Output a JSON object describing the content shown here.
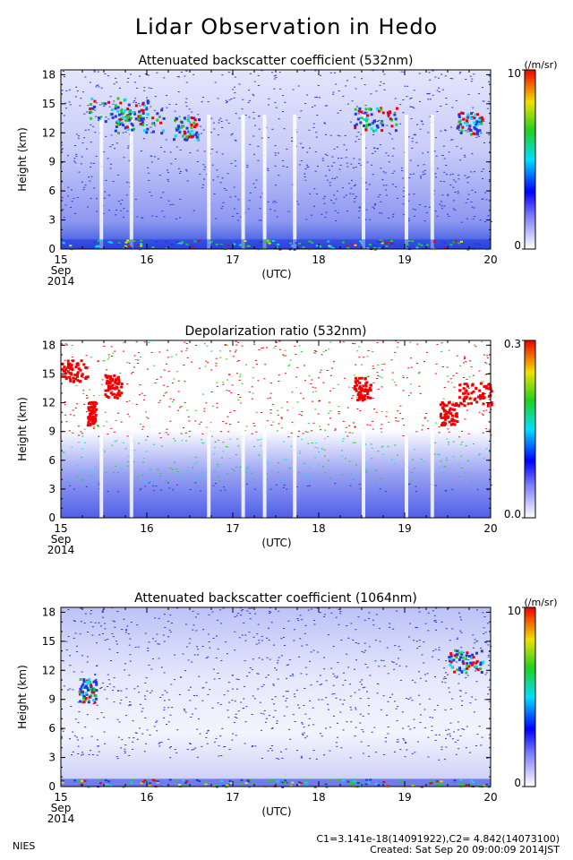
{
  "page_title": "Lidar Observation in Hedo",
  "footer": {
    "org": "NIES",
    "constants": "C1=3.141e-18(14091922),C2= 4.842(14073100)",
    "created": "Created: Sat Sep 20 09:00:09 2014JST"
  },
  "colors": {
    "low": "#ffffff",
    "blue": "#2438e0",
    "cyan": "#00e0ff",
    "green": "#20d020",
    "yellow": "#f0e000",
    "red": "#f00000"
  },
  "chart_data": [
    {
      "type": "heatmap",
      "title": "Attenuated backscatter coefficient (532nm)",
      "ylabel": "Height (km)",
      "xlabel": "(UTC)",
      "x_ticks": [
        "15",
        "16",
        "17",
        "18",
        "19",
        "20"
      ],
      "x_sublabel_1": "Sep",
      "x_sublabel_2": "2014",
      "y_ticks": [
        "0",
        "3",
        "6",
        "9",
        "12",
        "15",
        "18"
      ],
      "xlim": [
        15,
        20
      ],
      "ylim": [
        0,
        18.5
      ],
      "colorbar": {
        "max_label": "10",
        "min_label": "0",
        "unit": "(/m/sr)"
      },
      "features": {
        "cirrus": [
          [
            15.3,
            16.0,
            14.5
          ],
          [
            15.6,
            16.2,
            13.3
          ],
          [
            16.3,
            16.6,
            12.5
          ],
          [
            18.4,
            18.9,
            13.5
          ],
          [
            19.6,
            19.9,
            13.0
          ]
        ],
        "boundary_layer_km": 1.0,
        "gaps": [
          15.45,
          15.8,
          16.7,
          17.1,
          17.35,
          17.7,
          18.5,
          19.0,
          19.3
        ]
      }
    },
    {
      "type": "heatmap",
      "title": "Depolarization ratio (532nm)",
      "ylabel": "Height (km)",
      "xlabel": "(UTC)",
      "x_ticks": [
        "15",
        "16",
        "17",
        "18",
        "19",
        "20"
      ],
      "x_sublabel_1": "Sep",
      "x_sublabel_2": "2014",
      "y_ticks": [
        "0",
        "3",
        "6",
        "9",
        "12",
        "15",
        "18"
      ],
      "xlim": [
        15,
        20
      ],
      "ylim": [
        0,
        18.5
      ],
      "colorbar": {
        "max_label": "0.3",
        "min_label": "0.0"
      },
      "features": {
        "high_depol_layers": [
          [
            15.0,
            15.3,
            15.5
          ],
          [
            15.3,
            15.4,
            11.0
          ],
          [
            15.5,
            15.7,
            13.8
          ],
          [
            18.4,
            18.6,
            13.5
          ],
          [
            19.4,
            19.6,
            11.0
          ],
          [
            19.6,
            20.0,
            13.0
          ]
        ],
        "gaps": [
          15.45,
          15.8,
          16.7,
          17.1,
          17.35,
          17.7,
          18.5,
          19.0,
          19.3
        ]
      }
    },
    {
      "type": "heatmap",
      "title": "Attenuated backscatter coefficient (1064nm)",
      "ylabel": "Height (km)",
      "xlabel": "(UTC)",
      "x_ticks": [
        "15",
        "16",
        "17",
        "18",
        "19",
        "20"
      ],
      "x_sublabel_1": "Sep",
      "x_sublabel_2": "2014",
      "y_ticks": [
        "0",
        "3",
        "6",
        "9",
        "12",
        "15",
        "18"
      ],
      "xlim": [
        15,
        20
      ],
      "ylim": [
        0,
        18.5
      ],
      "colorbar": {
        "max_label": "10",
        "min_label": "0",
        "unit": "(/m/sr)"
      },
      "features": {
        "cirrus": [
          [
            15.2,
            15.4,
            10.0
          ],
          [
            19.5,
            19.9,
            13.0
          ]
        ],
        "boundary_layer_km": 0.8
      }
    }
  ]
}
